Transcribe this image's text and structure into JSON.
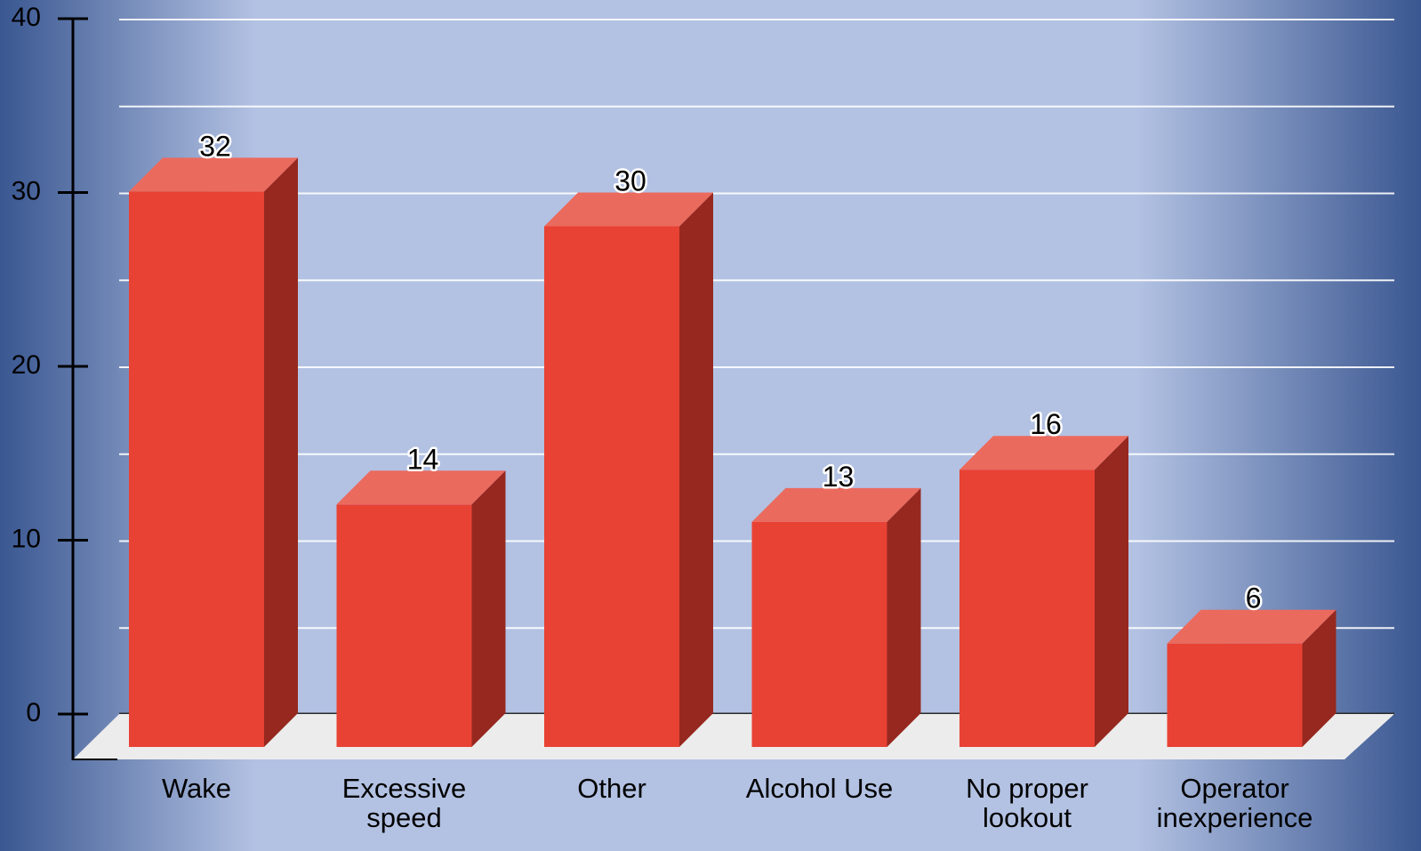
{
  "chart_data": {
    "type": "bar",
    "style": "3d",
    "title": "",
    "xlabel": "",
    "ylabel": "",
    "categories": [
      "Wake",
      "Excessive speed",
      "Other",
      "Alcohol Use",
      "No proper lookout",
      "Operator inexperience"
    ],
    "category_lines": [
      [
        "Wake"
      ],
      [
        "Excessive",
        "speed"
      ],
      [
        "Other"
      ],
      [
        "Alcohol Use"
      ],
      [
        "No proper",
        "lookout"
      ],
      [
        "Operator",
        "inexperience"
      ]
    ],
    "values": [
      32,
      14,
      30,
      13,
      16,
      6
    ],
    "data_labels": [
      "32",
      "14",
      "30",
      "13",
      "16",
      "6"
    ],
    "ylim": [
      0,
      40
    ],
    "yticks": [
      0,
      10,
      20,
      30,
      40
    ],
    "ytick_labels": [
      "0",
      "10",
      "20",
      "30",
      "40"
    ],
    "grid": true,
    "legend": "none",
    "colors": {
      "bar_front": "#e84234",
      "bar_side": "#96281f",
      "bar_top": "#eb6a5e",
      "floor": "#ececec",
      "grid": "#ffffff",
      "background_center": "#b3c2e3",
      "background_edge": "#3a5791"
    }
  }
}
